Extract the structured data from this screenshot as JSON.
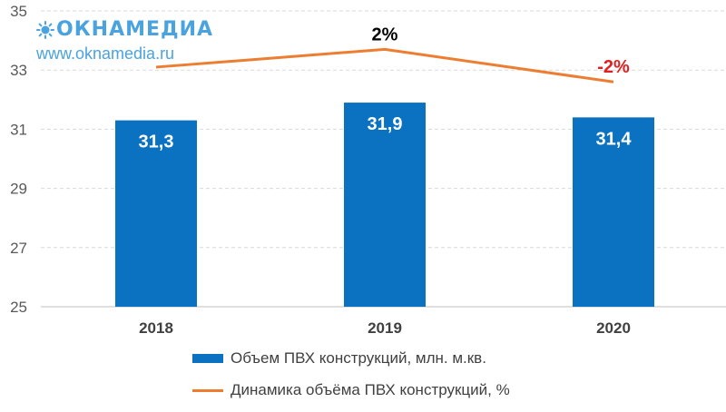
{
  "logo": {
    "name": "ОКНАМЕДИА",
    "url": "www.oknamedia.ru"
  },
  "colors": {
    "bar": "#0b72c2",
    "line": "#ed7d31",
    "grid": "#d9d9d9",
    "axis_text": "#595959",
    "positive_label": "#000000",
    "negative_label": "#e02020",
    "logo": "#4aa3df"
  },
  "legend": {
    "bar_label": "Объем ПВХ конструкций, млн. м.кв.",
    "line_label": "Динамика объёма ПВХ конструкций, %"
  },
  "chart_data": {
    "type": "bar",
    "categories": [
      "2018",
      "2019",
      "2020"
    ],
    "ylim": [
      25,
      35
    ],
    "yticks": [
      "25",
      "27",
      "29",
      "31",
      "33",
      "35"
    ],
    "grid": true,
    "legend_position": "bottom",
    "series": [
      {
        "name": "Объем ПВХ конструкций, млн. м.кв.",
        "type": "bar",
        "values": [
          31.3,
          31.9,
          31.4
        ],
        "labels": [
          "31,3",
          "31,9",
          "31,4"
        ]
      },
      {
        "name": "Динамика объёма ПВХ конструкций, %",
        "type": "line",
        "plotted_values": [
          33.1,
          33.7,
          32.6
        ],
        "labels": [
          "",
          "2%",
          "-2%"
        ]
      }
    ]
  }
}
